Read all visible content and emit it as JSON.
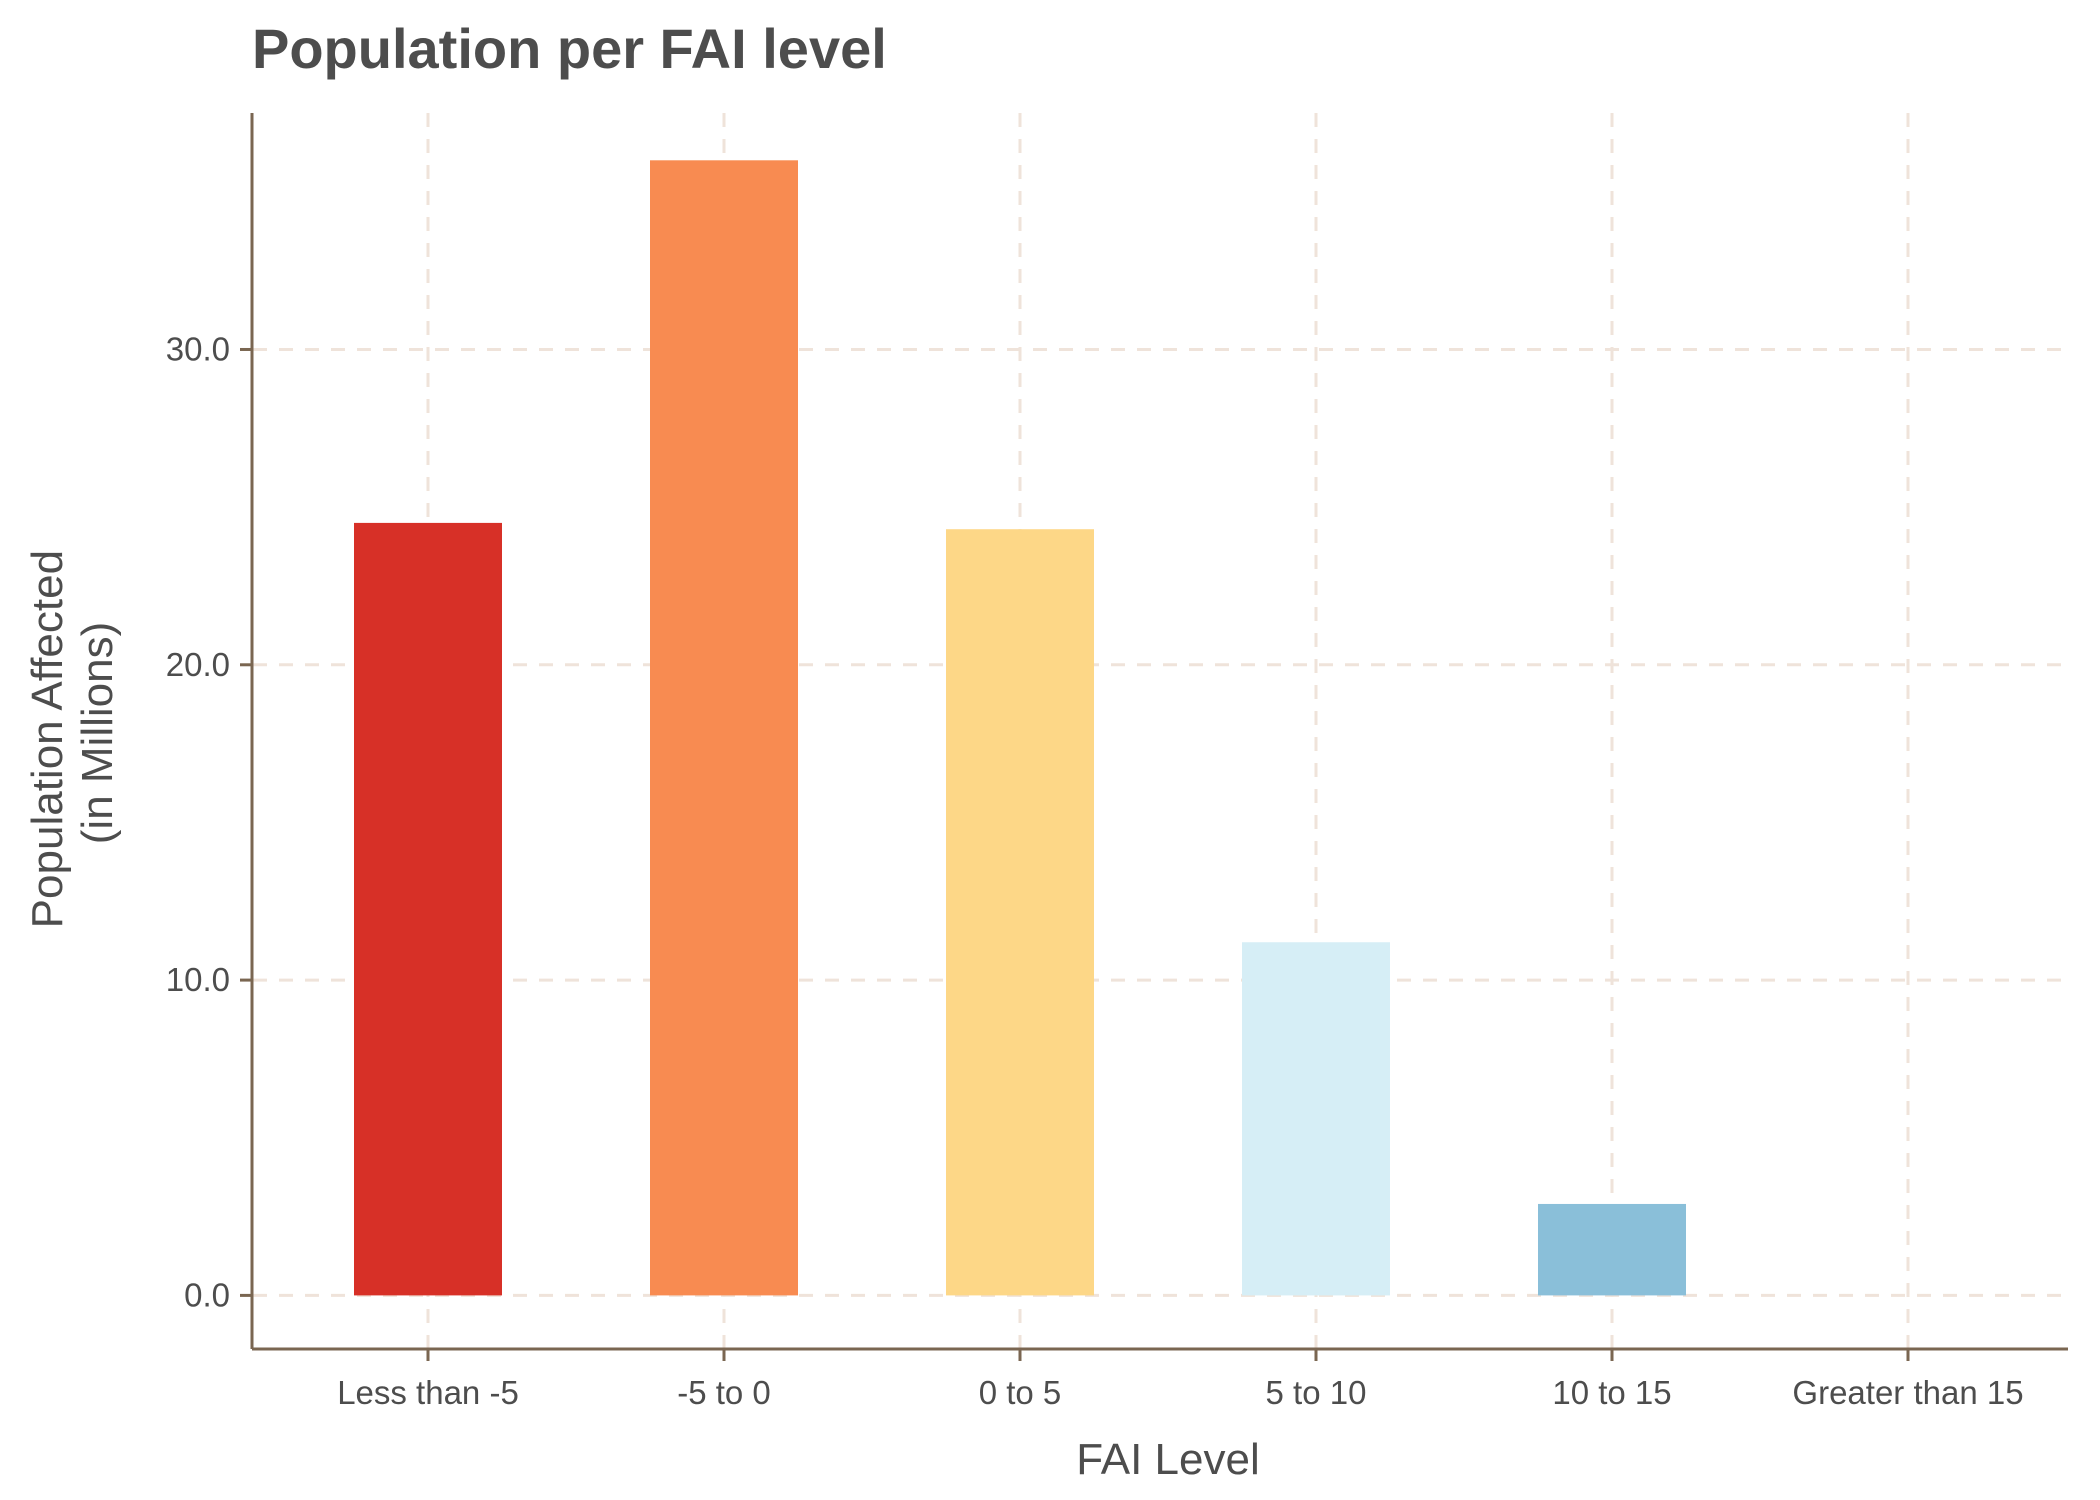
{
  "chart_data": {
    "type": "bar",
    "title": "Population per FAI level",
    "xlabel": "FAI Level",
    "ylabel_lines": [
      "Population Affected",
      "(in Millions)"
    ],
    "categories": [
      "Less than -5",
      "-5 to 0",
      "0 to 5",
      "5 to 10",
      "10 to 15",
      "Greater than 15"
    ],
    "values": [
      24.5,
      36.0,
      24.3,
      11.2,
      2.9,
      0.0
    ],
    "colors": [
      "#d73027",
      "#f88b51",
      "#fdd787",
      "#d6eef6",
      "#8abfd9",
      "#4575b4"
    ],
    "ylim": [
      -1.7,
      37.5
    ],
    "yticks": [
      0,
      10,
      20,
      30
    ],
    "ytick_labels": [
      "0.0",
      "10.0",
      "20.0",
      "30.0"
    ],
    "grid": true,
    "legend": "none"
  }
}
